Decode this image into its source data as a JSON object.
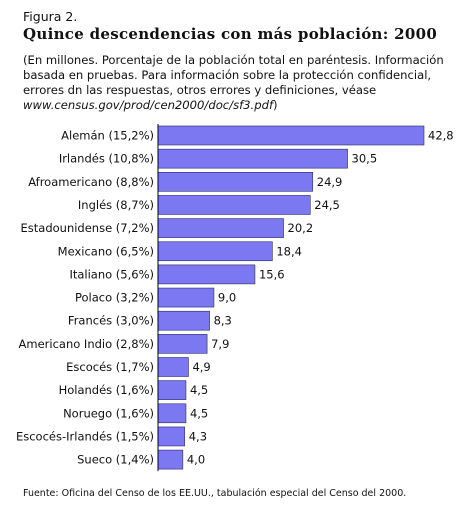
{
  "figure_label": "Figura 2.",
  "title": "Quince descendencias con más población: 2000",
  "subtitle_text": "(En millones. Porcentaje de la población total en paréntesis. Información basada en pruebas. Para información sobre la protección confidencial, errores dn las respuestas, otros errores y definiciones, véase",
  "subtitle_source": "www.census.gov/prod/cen2000/doc/sf3.pdf",
  "subtitle_close": ")",
  "footer": "Fuente: Oficina del Censo de los EE.UU., tabulación especial del Censo del 2000.",
  "colors": {
    "bar_fill": "#7b78f2",
    "bar_stroke": "#2a2a6a",
    "axis": "#000000"
  },
  "chart_data": {
    "type": "bar",
    "orientation": "horizontal",
    "categories": [
      "Alemán (15,2%)",
      "Irlandés (10,8%)",
      "Afroamericano (8,8%)",
      "Inglés (8,7%)",
      "Estadounidense (7,2%)",
      "Mexicano (6,5%)",
      "Italiano (5,6%)",
      "Polaco (3,2%)",
      "Francés (3,0%)",
      "Americano Indio (2,8%)",
      "Escocés (1,7%)",
      "Holandés (1,6%)",
      "Noruego (1,6%)",
      "Escocés-Irlandés (1,5%)",
      "Sueco (1,4%)"
    ],
    "values": [
      42.8,
      30.5,
      24.9,
      24.5,
      20.2,
      18.4,
      15.6,
      9.0,
      8.3,
      7.9,
      4.9,
      4.5,
      4.5,
      4.3,
      4.0
    ],
    "value_labels": [
      "42,8",
      "30,5",
      "24,9",
      "24,5",
      "20,2",
      "18,4",
      "15,6",
      "9,0",
      "8,3",
      "7,9",
      "4,9",
      "4,5",
      "4,5",
      "4,3",
      "4,0"
    ],
    "xlim": [
      0,
      42.8
    ],
    "grid": false,
    "legend": "none"
  }
}
